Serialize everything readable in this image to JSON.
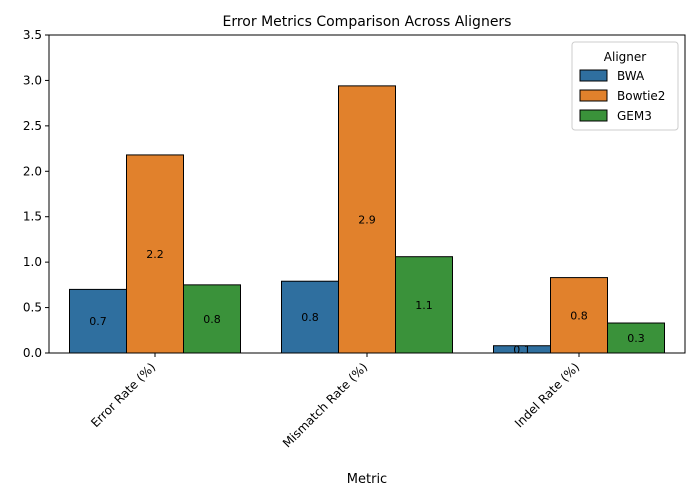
{
  "chart_data": {
    "type": "bar",
    "title": "Error Metrics Comparison Across Aligners",
    "xlabel": "Metric",
    "ylabel": "",
    "categories": [
      "Error Rate (%)",
      "Mismatch Rate (%)",
      "Indel Rate (%)"
    ],
    "series": [
      {
        "name": "BWA",
        "color": "#2f6f9f",
        "values": [
          0.7,
          0.79,
          0.08
        ],
        "labels": [
          "0.7",
          "0.8",
          "0.1"
        ]
      },
      {
        "name": "Bowtie2",
        "color": "#e1812c",
        "values": [
          2.18,
          2.94,
          0.83
        ],
        "labels": [
          "2.2",
          "2.9",
          "0.8"
        ]
      },
      {
        "name": "GEM3",
        "color": "#3a923a",
        "values": [
          0.75,
          1.06,
          0.33
        ],
        "labels": [
          "0.8",
          "1.1",
          "0.3"
        ]
      }
    ],
    "ylim": [
      0,
      3.5
    ],
    "yticks": [
      "0.0",
      "0.5",
      "1.0",
      "1.5",
      "2.0",
      "2.5",
      "3.0",
      "3.5"
    ],
    "grid": false,
    "legend": {
      "title": "Aligner",
      "placement": "top-right"
    }
  }
}
